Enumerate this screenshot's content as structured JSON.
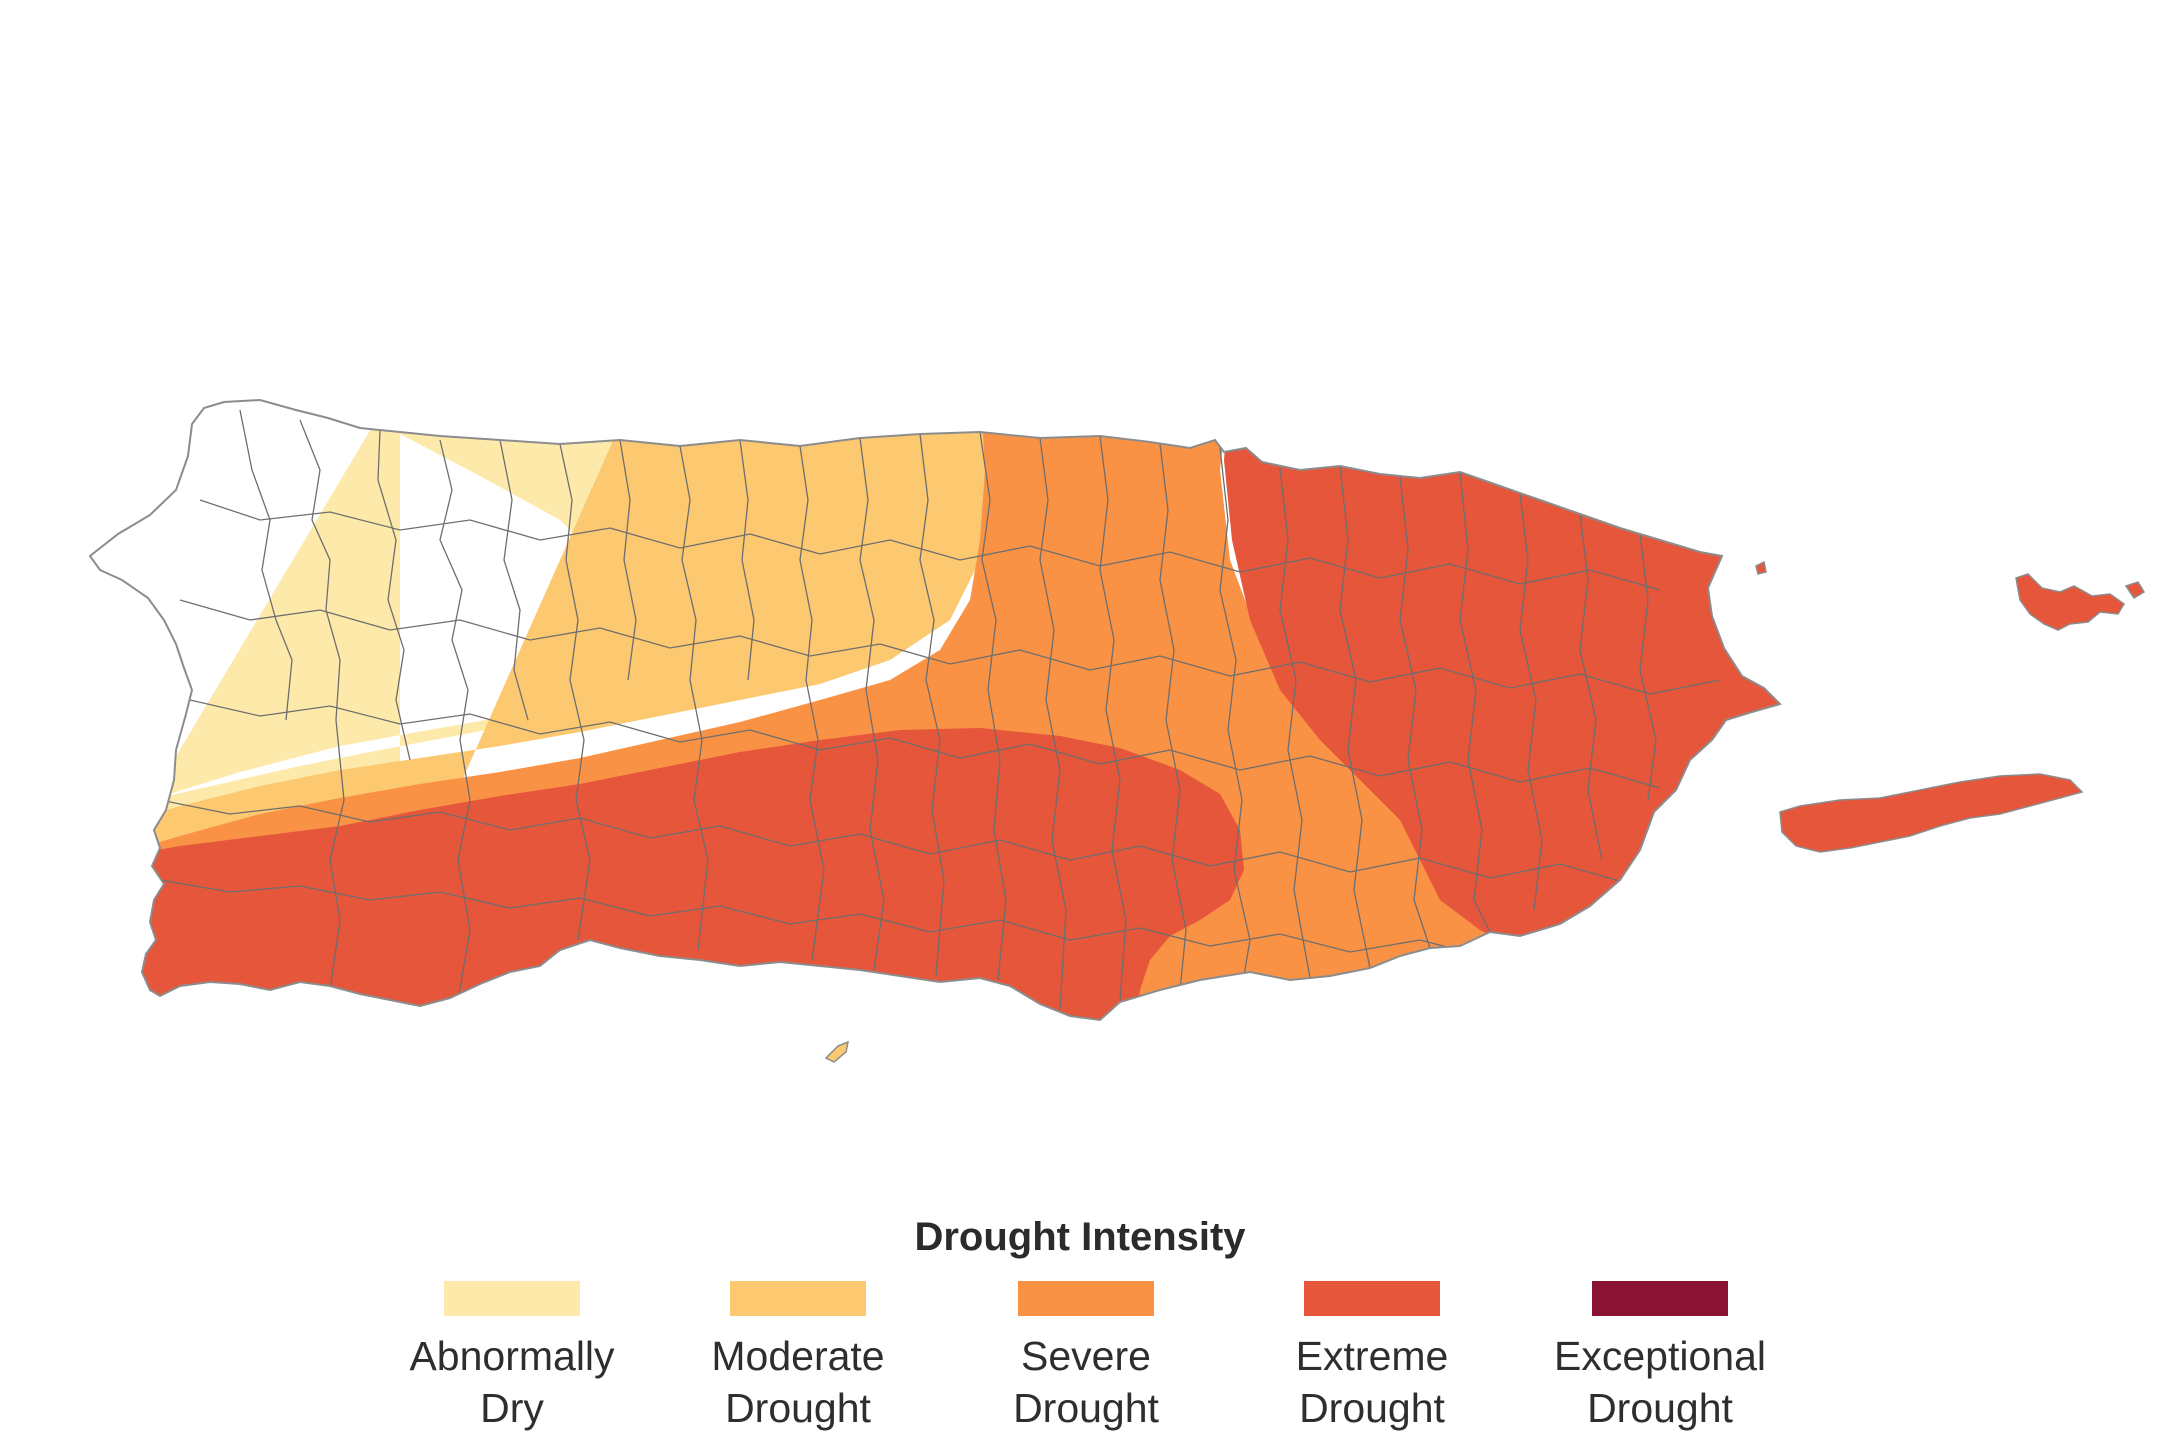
{
  "legend": {
    "title": "Drought Intensity",
    "items": [
      {
        "label": "Abnormally\nDry",
        "color": "#fdeaaa"
      },
      {
        "label": "Moderate\nDrought",
        "color": "#fcc870"
      },
      {
        "label": "Severe\nDrought",
        "color": "#f99244"
      },
      {
        "label": "Extreme\nDrought",
        "color": "#e5563b"
      },
      {
        "label": "Exceptional\nDrought",
        "color": "#8a1233"
      }
    ]
  },
  "colors": {
    "background": "#ffffff",
    "no_drought": "#ffffff",
    "municipal_borders": "#6e6e6e",
    "coastline": "#8c8c8c"
  }
}
